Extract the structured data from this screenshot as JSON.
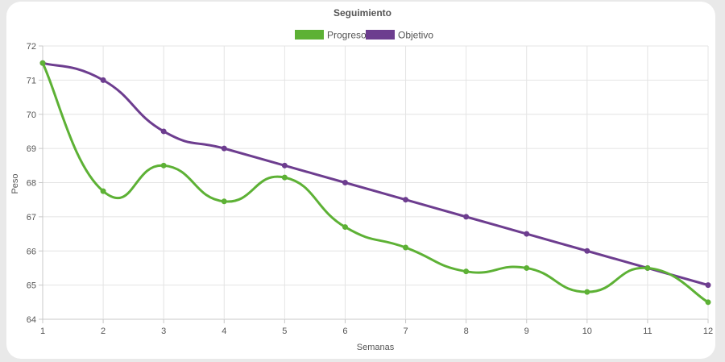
{
  "chart_data": {
    "type": "line",
    "title": "Seguimiento",
    "xlabel": "Semanas",
    "ylabel": "Peso",
    "x": [
      1,
      2,
      3,
      4,
      5,
      6,
      7,
      8,
      9,
      10,
      11,
      12
    ],
    "xlim": [
      1,
      12
    ],
    "ylim": [
      64,
      72
    ],
    "yticks": [
      64,
      65,
      66,
      67,
      68,
      69,
      70,
      71,
      72
    ],
    "grid": true,
    "legend_position": "top",
    "series": [
      {
        "name": "Progreso",
        "color": "#5db135",
        "values": [
          71.5,
          67.75,
          68.5,
          67.45,
          68.15,
          66.7,
          66.1,
          65.4,
          65.5,
          64.8,
          65.5,
          64.5
        ]
      },
      {
        "name": "Objetivo",
        "color": "#6d3d8f",
        "values": [
          71.5,
          71.0,
          69.5,
          69.0,
          68.5,
          68.0,
          67.5,
          67.0,
          66.5,
          66.0,
          65.5,
          65.0
        ]
      }
    ]
  }
}
